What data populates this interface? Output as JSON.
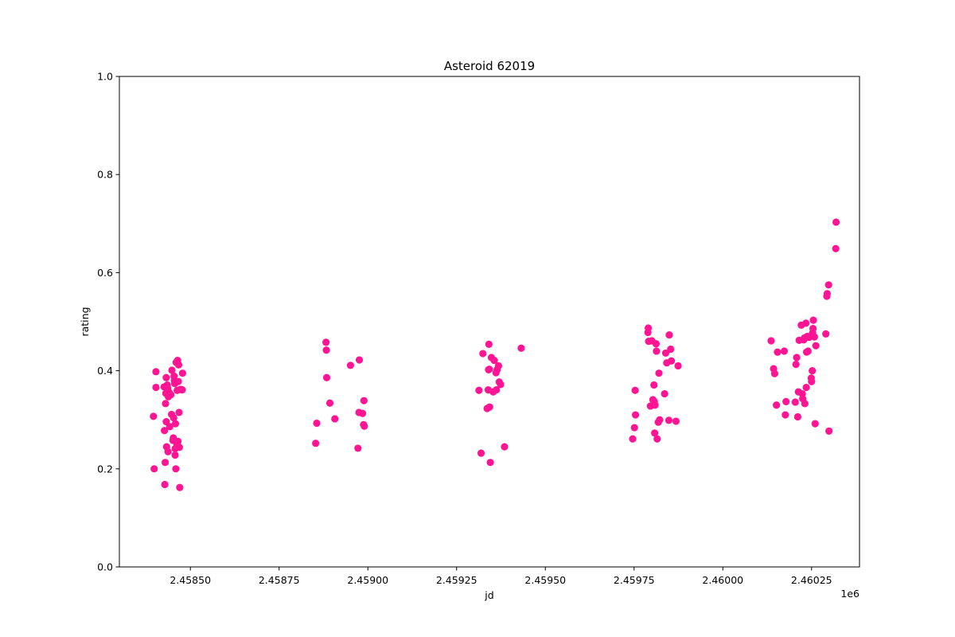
{
  "chart_data": {
    "type": "scatter",
    "title": "Asteroid 62019",
    "xlabel": "jd",
    "ylabel": "rating",
    "x_offset_label": "1e6",
    "xlim": [
      2458300,
      2460385
    ],
    "ylim": [
      0,
      1
    ],
    "x_ticks": [
      2458500,
      2458750,
      2459000,
      2459250,
      2459500,
      2459750,
      2460000,
      2460250
    ],
    "x_tick_labels": [
      "2.45850",
      "2.45875",
      "2.45900",
      "2.45925",
      "2.45950",
      "2.45975",
      "2.46000",
      "2.46025"
    ],
    "y_ticks": [
      0.0,
      0.2,
      0.4,
      0.6,
      0.8,
      1.0
    ],
    "y_tick_labels": [
      "0.0",
      "0.2",
      "0.4",
      "0.6",
      "0.8",
      "1.0"
    ],
    "marker_color": "#ff1493",
    "grid": false,
    "points": [
      [
        2458396,
        0.307
      ],
      [
        2458398,
        0.2
      ],
      [
        2458403,
        0.398
      ],
      [
        2458403,
        0.366
      ],
      [
        2458426,
        0.367
      ],
      [
        2458427,
        0.278
      ],
      [
        2458428,
        0.168
      ],
      [
        2458429,
        0.213
      ],
      [
        2458430,
        0.333
      ],
      [
        2458431,
        0.354
      ],
      [
        2458432,
        0.386
      ],
      [
        2458432,
        0.296
      ],
      [
        2458433,
        0.245
      ],
      [
        2458435,
        0.371
      ],
      [
        2458436,
        0.364
      ],
      [
        2458437,
        0.235
      ],
      [
        2458438,
        0.347
      ],
      [
        2458440,
        0.356
      ],
      [
        2458442,
        0.286
      ],
      [
        2458445,
        0.351
      ],
      [
        2458447,
        0.311
      ],
      [
        2458448,
        0.401
      ],
      [
        2458451,
        0.258
      ],
      [
        2458452,
        0.263
      ],
      [
        2458453,
        0.304
      ],
      [
        2458454,
        0.389
      ],
      [
        2458455,
        0.38
      ],
      [
        2458456,
        0.374
      ],
      [
        2458457,
        0.241
      ],
      [
        2458457,
        0.228
      ],
      [
        2458458,
        0.292
      ],
      [
        2458459,
        0.2
      ],
      [
        2458460,
        0.417
      ],
      [
        2458462,
        0.25
      ],
      [
        2458463,
        0.36
      ],
      [
        2458464,
        0.421
      ],
      [
        2458465,
        0.256
      ],
      [
        2458466,
        0.378
      ],
      [
        2458467,
        0.412
      ],
      [
        2458468,
        0.315
      ],
      [
        2458469,
        0.244
      ],
      [
        2458470,
        0.162
      ],
      [
        2458472,
        0.362
      ],
      [
        2458477,
        0.361
      ],
      [
        2458478,
        0.395
      ],
      [
        2458853,
        0.252
      ],
      [
        2458856,
        0.293
      ],
      [
        2458882,
        0.458
      ],
      [
        2458883,
        0.442
      ],
      [
        2458884,
        0.386
      ],
      [
        2458893,
        0.334
      ],
      [
        2458907,
        0.302
      ],
      [
        2458951,
        0.411
      ],
      [
        2458972,
        0.242
      ],
      [
        2458975,
        0.315
      ],
      [
        2458976,
        0.422
      ],
      [
        2458985,
        0.313
      ],
      [
        2458988,
        0.29
      ],
      [
        2458989,
        0.339
      ],
      [
        2458990,
        0.287
      ],
      [
        2459313,
        0.36
      ],
      [
        2459319,
        0.232
      ],
      [
        2459324,
        0.435
      ],
      [
        2459336,
        0.323
      ],
      [
        2459339,
        0.361
      ],
      [
        2459340,
        0.402
      ],
      [
        2459341,
        0.454
      ],
      [
        2459342,
        0.403
      ],
      [
        2459343,
        0.326
      ],
      [
        2459345,
        0.213
      ],
      [
        2459348,
        0.427
      ],
      [
        2459353,
        0.357
      ],
      [
        2459356,
        0.421
      ],
      [
        2459361,
        0.396
      ],
      [
        2459362,
        0.361
      ],
      [
        2459364,
        0.402
      ],
      [
        2459368,
        0.41
      ],
      [
        2459370,
        0.377
      ],
      [
        2459374,
        0.372
      ],
      [
        2459385,
        0.245
      ],
      [
        2459432,
        0.446
      ],
      [
        2459746,
        0.261
      ],
      [
        2459751,
        0.284
      ],
      [
        2459753,
        0.36
      ],
      [
        2459754,
        0.31
      ],
      [
        2459789,
        0.478
      ],
      [
        2459790,
        0.487
      ],
      [
        2459791,
        0.46
      ],
      [
        2459796,
        0.328
      ],
      [
        2459800,
        0.461
      ],
      [
        2459803,
        0.341
      ],
      [
        2459806,
        0.371
      ],
      [
        2459807,
        0.337
      ],
      [
        2459808,
        0.273
      ],
      [
        2459809,
        0.33
      ],
      [
        2459812,
        0.455
      ],
      [
        2459813,
        0.44
      ],
      [
        2459815,
        0.261
      ],
      [
        2459818,
        0.295
      ],
      [
        2459820,
        0.395
      ],
      [
        2459822,
        0.3
      ],
      [
        2459836,
        0.353
      ],
      [
        2459839,
        0.436
      ],
      [
        2459842,
        0.416
      ],
      [
        2459848,
        0.299
      ],
      [
        2459849,
        0.473
      ],
      [
        2459853,
        0.444
      ],
      [
        2459855,
        0.42
      ],
      [
        2459868,
        0.297
      ],
      [
        2459874,
        0.41
      ],
      [
        2460136,
        0.461
      ],
      [
        2460143,
        0.404
      ],
      [
        2460146,
        0.394
      ],
      [
        2460151,
        0.33
      ],
      [
        2460154,
        0.438
      ],
      [
        2460173,
        0.44
      ],
      [
        2460176,
        0.31
      ],
      [
        2460178,
        0.337
      ],
      [
        2460204,
        0.336
      ],
      [
        2460206,
        0.413
      ],
      [
        2460208,
        0.427
      ],
      [
        2460211,
        0.306
      ],
      [
        2460213,
        0.357
      ],
      [
        2460215,
        0.462
      ],
      [
        2460221,
        0.493
      ],
      [
        2460224,
        0.353
      ],
      [
        2460225,
        0.343
      ],
      [
        2460228,
        0.463
      ],
      [
        2460230,
        0.467
      ],
      [
        2460231,
        0.333
      ],
      [
        2460234,
        0.497
      ],
      [
        2460235,
        0.366
      ],
      [
        2460236,
        0.438
      ],
      [
        2460238,
        0.47
      ],
      [
        2460240,
        0.44
      ],
      [
        2460243,
        0.468
      ],
      [
        2460249,
        0.385
      ],
      [
        2460250,
        0.378
      ],
      [
        2460252,
        0.4
      ],
      [
        2460253,
        0.477
      ],
      [
        2460254,
        0.486
      ],
      [
        2460255,
        0.503
      ],
      [
        2460258,
        0.469
      ],
      [
        2460260,
        0.292
      ],
      [
        2460262,
        0.451
      ],
      [
        2460290,
        0.475
      ],
      [
        2460293,
        0.552
      ],
      [
        2460294,
        0.557
      ],
      [
        2460298,
        0.575
      ],
      [
        2460299,
        0.277
      ],
      [
        2460318,
        0.649
      ],
      [
        2460319,
        0.703
      ]
    ]
  }
}
